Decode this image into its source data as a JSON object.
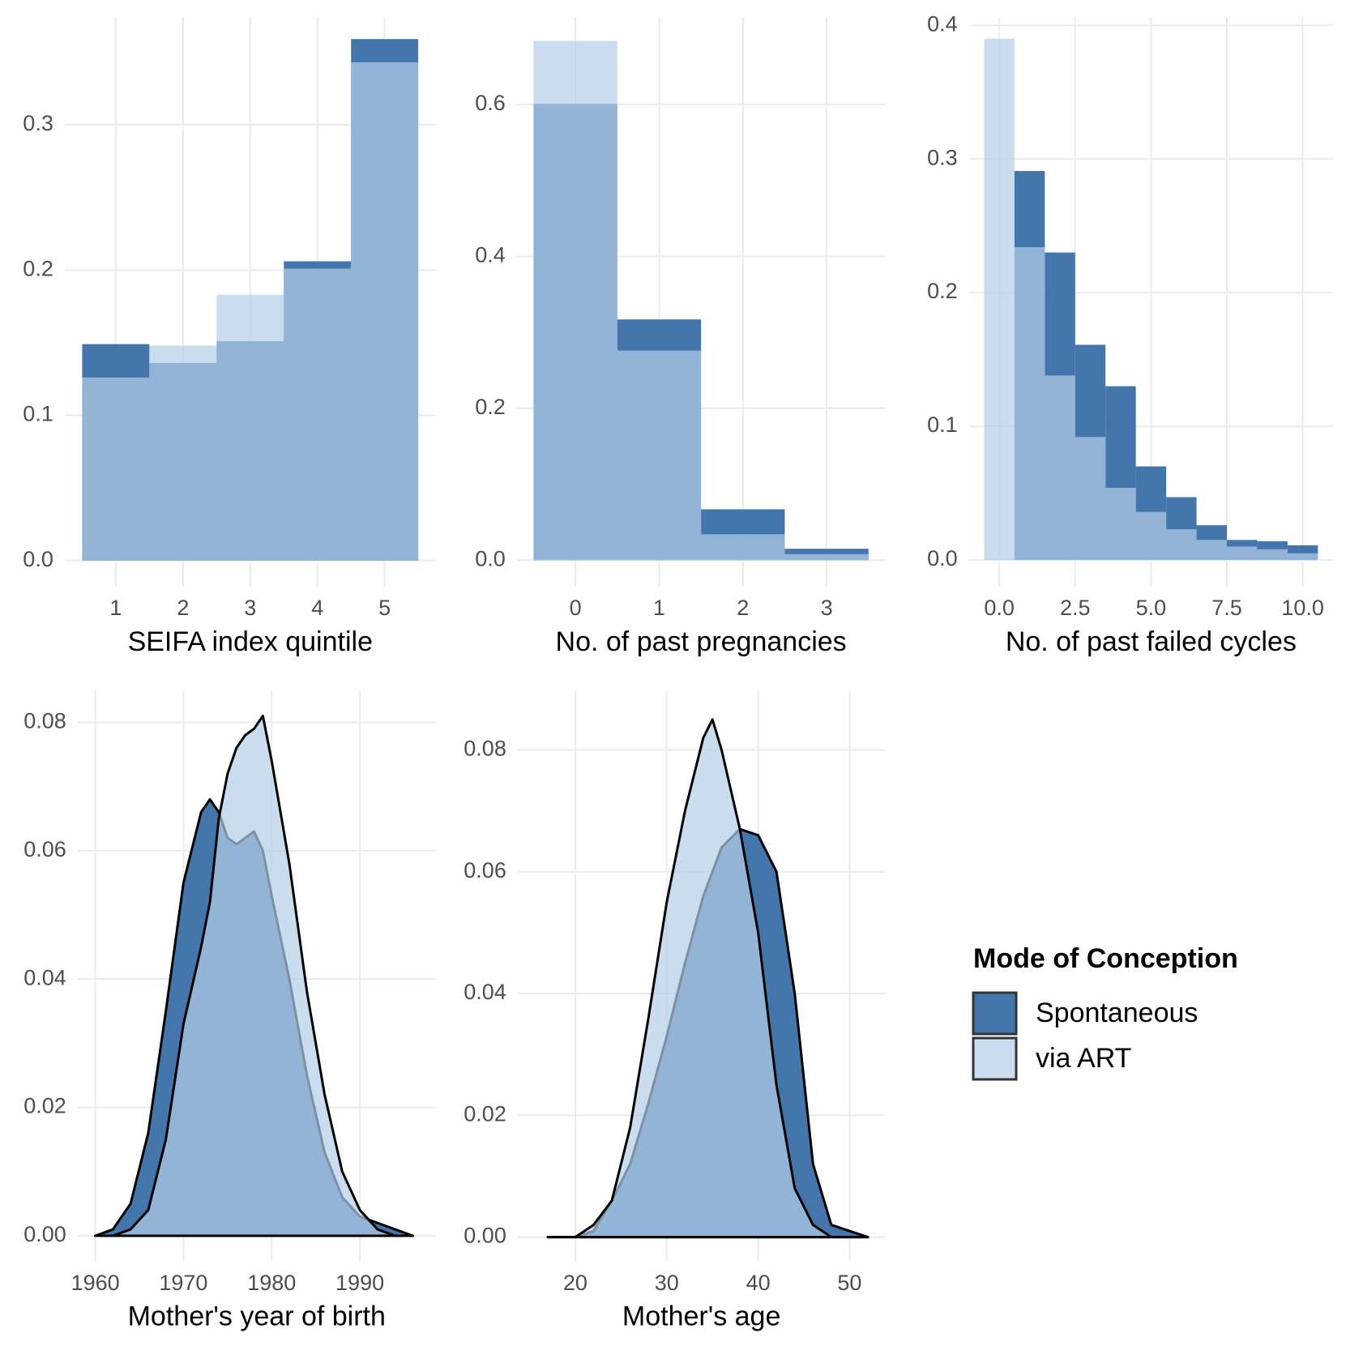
{
  "legend": {
    "title": "Mode of Conception"
  },
  "chart_data": [
    {
      "type": "histogram",
      "x_label": "SEIFA index quintile",
      "bins": [
        0.5,
        1.5,
        2.5,
        3.5,
        4.5,
        5.5
      ],
      "series": [
        {
          "name": "Spontaneous",
          "color": "#3a6fa6",
          "values": [
            0.149,
            0.136,
            0.151,
            0.206,
            0.359
          ]
        },
        {
          "name": "via ART",
          "color": "#b4cfe8",
          "values": [
            0.126,
            0.148,
            0.183,
            0.201,
            0.343
          ]
        }
      ],
      "xlim": [
        0.24,
        5.76
      ],
      "xticks": [
        1,
        2,
        3,
        4,
        5
      ],
      "ylim": [
        -0.018,
        0.374
      ],
      "yticks": [
        {
          "value": 0,
          "label": "0.0"
        },
        0.1,
        0.2,
        0.3
      ],
      "grid": true
    },
    {
      "type": "histogram",
      "x_label": "No. of past pregnancies",
      "bins": [
        -0.5,
        0.5,
        1.5,
        2.5,
        3.5
      ],
      "series": [
        {
          "name": "Spontaneous",
          "color": "#3a6fa6",
          "values": [
            0.601,
            0.317,
            0.067,
            0.015
          ]
        },
        {
          "name": "via ART",
          "color": "#b4cfe8",
          "values": [
            0.684,
            0.276,
            0.034,
            0.008
          ]
        }
      ],
      "xlim": [
        -0.7,
        3.7
      ],
      "xticks": [
        0,
        1,
        2,
        3
      ],
      "ylim": [
        -0.035,
        0.715
      ],
      "yticks": [
        {
          "value": 0,
          "label": "0.0"
        },
        0.2,
        0.4,
        0.6
      ],
      "grid": true
    },
    {
      "type": "histogram",
      "x_label": "No. of past failed cycles",
      "bins": [
        -0.5,
        0.5,
        1.5,
        2.5,
        3.5,
        4.5,
        5.5,
        6.5,
        7.5,
        8.5,
        9.5,
        10.5
      ],
      "series": [
        {
          "name": "Spontaneous",
          "color": "#3a6fa6",
          "values": [
            0,
            0.291,
            0.23,
            0.161,
            0.13,
            0.07,
            0.047,
            0.026,
            0.015,
            0.014,
            0.011
          ]
        },
        {
          "name": "via ART",
          "color": "#b4cfe8",
          "values": [
            0.39,
            0.234,
            0.138,
            0.092,
            0.054,
            0.036,
            0.023,
            0.015,
            0.01,
            0.008,
            0.005
          ]
        }
      ],
      "xlim": [
        -1.0,
        11.0
      ],
      "xticks": [
        {
          "value": 0,
          "label": "0.0"
        },
        2.5,
        {
          "value": 5,
          "label": "5.0"
        },
        7.5,
        {
          "value": 10,
          "label": "10.0"
        }
      ],
      "ylim": [
        -0.02,
        0.406
      ],
      "yticks": [
        {
          "value": 0,
          "label": "0.0"
        },
        0.1,
        0.2,
        0.3,
        0.4
      ],
      "grid": true
    },
    {
      "type": "density",
      "x_label": "Mother's year of birth",
      "x": [
        1960,
        1962,
        1964,
        1966,
        1968,
        1970,
        1972,
        1973,
        1974,
        1975,
        1976,
        1977,
        1978,
        1979,
        1980,
        1982,
        1984,
        1986,
        1988,
        1990,
        1992,
        1994,
        1996
      ],
      "series": [
        {
          "name": "Spontaneous",
          "color": "#3a6fa6",
          "values": [
            0,
            0.001,
            0.005,
            0.016,
            0.035,
            0.055,
            0.066,
            0.068,
            0.066,
            0.062,
            0.061,
            0.062,
            0.063,
            0.06,
            0.053,
            0.04,
            0.025,
            0.013,
            0.006,
            0.003,
            0.002,
            0.001,
            0
          ]
        },
        {
          "name": "via ART",
          "color": "#b4cfe8",
          "values": [
            0,
            0,
            0.001,
            0.004,
            0.015,
            0.033,
            0.045,
            0.052,
            0.065,
            0.072,
            0.076,
            0.078,
            0.079,
            0.081,
            0.074,
            0.058,
            0.038,
            0.022,
            0.01,
            0.004,
            0.001,
            0,
            0
          ]
        }
      ],
      "xlim": [
        1958,
        1998.6
      ],
      "xticks": [
        1960,
        1970,
        1980,
        1990
      ],
      "ylim": [
        -0.004,
        0.085
      ],
      "yticks": [
        {
          "value": 0,
          "label": "0.00"
        },
        0.02,
        0.04,
        0.06,
        0.08
      ],
      "grid": true
    },
    {
      "type": "density",
      "x_label": "Mother's age",
      "x": [
        17,
        20,
        22,
        24,
        26,
        28,
        30,
        32,
        34,
        35,
        36,
        38,
        40,
        42,
        44,
        46,
        48,
        52
      ],
      "series": [
        {
          "name": "Spontaneous",
          "color": "#3a6fa6",
          "values": [
            0,
            0,
            0.001,
            0.006,
            0.012,
            0.022,
            0.033,
            0.045,
            0.056,
            0.06,
            0.064,
            0.067,
            0.066,
            0.06,
            0.04,
            0.012,
            0.002,
            0
          ]
        },
        {
          "name": "via ART",
          "color": "#b4cfe8",
          "values": [
            0,
            0,
            0.002,
            0.006,
            0.018,
            0.036,
            0.055,
            0.07,
            0.082,
            0.085,
            0.08,
            0.067,
            0.05,
            0.025,
            0.008,
            0.002,
            0,
            0
          ]
        }
      ],
      "xlim": [
        13.7,
        53.9
      ],
      "xticks": [
        20,
        30,
        40,
        50
      ],
      "ylim": [
        -0.004,
        0.0898
      ],
      "yticks": [
        {
          "value": 0,
          "label": "0.00"
        },
        0.02,
        0.04,
        0.06,
        0.08
      ],
      "grid": true
    }
  ]
}
